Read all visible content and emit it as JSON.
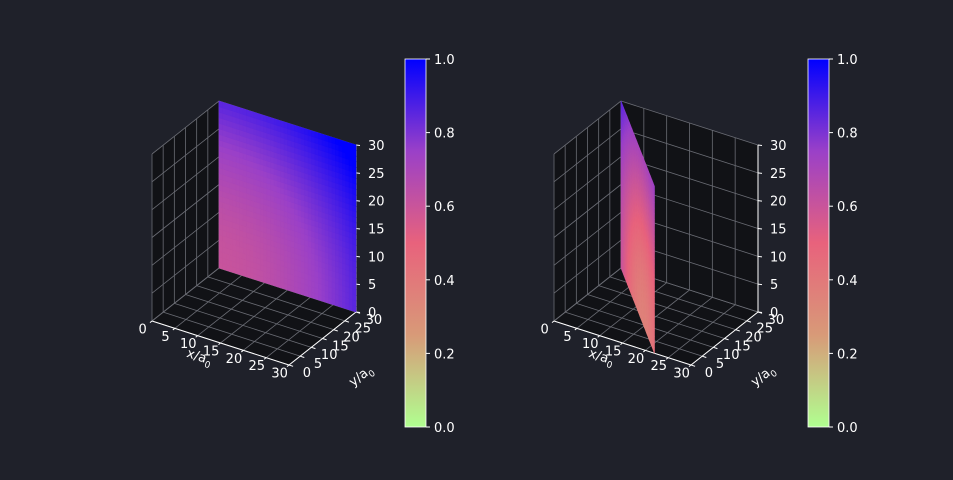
{
  "figure": {
    "background": "#1f212a",
    "pane_color": "#111216",
    "grid_color": "#6a6c74"
  },
  "chart_data": [
    {
      "type": "surface3d",
      "xlabel": "x/a",
      "xlabel_sub": "0",
      "ylabel": "y/a",
      "ylabel_sub": "0",
      "xticks": [
        "0",
        "5",
        "10",
        "15",
        "20",
        "25",
        "30"
      ],
      "yticks": [
        "0",
        "5",
        "10",
        "15",
        "20",
        "25",
        "30"
      ],
      "zticks": [
        "0",
        "5",
        "10",
        "15",
        "20",
        "25",
        "30"
      ],
      "xlim": [
        0,
        30
      ],
      "ylim": [
        0,
        30
      ],
      "zlim": [
        0,
        30
      ],
      "plane": {
        "x_start": 0,
        "x_end": 30,
        "y_start": 30,
        "y_end": 30,
        "z_min": 0,
        "z_max": 30
      },
      "colorbar": {
        "ticks": [
          "0.0",
          "0.2",
          "0.4",
          "0.6",
          "0.8",
          "1.0"
        ],
        "range": [
          0,
          1
        ]
      }
    },
    {
      "type": "surface3d",
      "xlabel": "x/a",
      "xlabel_sub": "0",
      "ylabel": "y/a",
      "ylabel_sub": "0",
      "xticks": [
        "0",
        "5",
        "10",
        "15",
        "20",
        "25",
        "30"
      ],
      "yticks": [
        "0",
        "5",
        "10",
        "15",
        "20",
        "25",
        "30"
      ],
      "zticks": [
        "0",
        "5",
        "10",
        "15",
        "20",
        "25",
        "30"
      ],
      "xlim": [
        0,
        30
      ],
      "ylim": [
        0,
        30
      ],
      "zlim": [
        0,
        30
      ],
      "plane": {
        "x_start": 22,
        "x_end": 0,
        "y_start": 0,
        "y_end": 30,
        "z_min": 0,
        "z_max": 30
      },
      "colorbar": {
        "ticks": [
          "0.0",
          "0.2",
          "0.4",
          "0.6",
          "0.8",
          "1.0"
        ],
        "range": [
          0,
          1
        ]
      }
    }
  ],
  "colormap": [
    "#b0ff90",
    "#d89a78",
    "#e8627c",
    "#9a40c8",
    "#0000ff"
  ]
}
